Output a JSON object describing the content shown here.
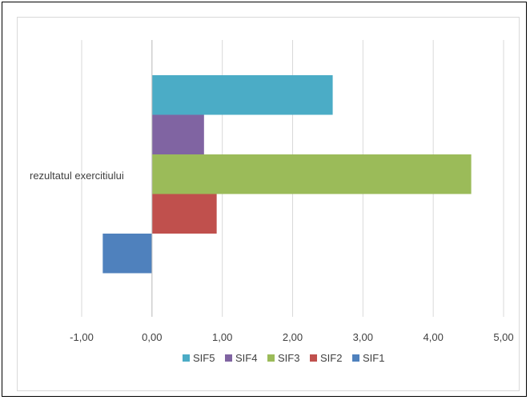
{
  "chart_data": {
    "type": "bar",
    "orientation": "horizontal",
    "category": "rezultatul exercitiului",
    "series": [
      {
        "name": "SIF5",
        "value": 2.57,
        "color": "#4bacc6"
      },
      {
        "name": "SIF4",
        "value": 0.74,
        "color": "#8064a2"
      },
      {
        "name": "SIF3",
        "value": 4.54,
        "color": "#9bbb59"
      },
      {
        "name": "SIF2",
        "value": 0.92,
        "color": "#c0504d"
      },
      {
        "name": "SIF1",
        "value": -0.7,
        "color": "#4f81bd"
      }
    ],
    "xlim": [
      -1.0,
      5.0
    ],
    "xticks": [
      "-1,00",
      "0,00",
      "1,00",
      "2,00",
      "3,00",
      "4,00",
      "5,00"
    ],
    "xtick_values": [
      -1,
      0,
      1,
      2,
      3,
      4,
      5
    ],
    "grid": "vertical",
    "legend_position": "bottom",
    "legend_order": [
      "SIF5",
      "SIF4",
      "SIF3",
      "SIF2",
      "SIF1"
    ]
  }
}
